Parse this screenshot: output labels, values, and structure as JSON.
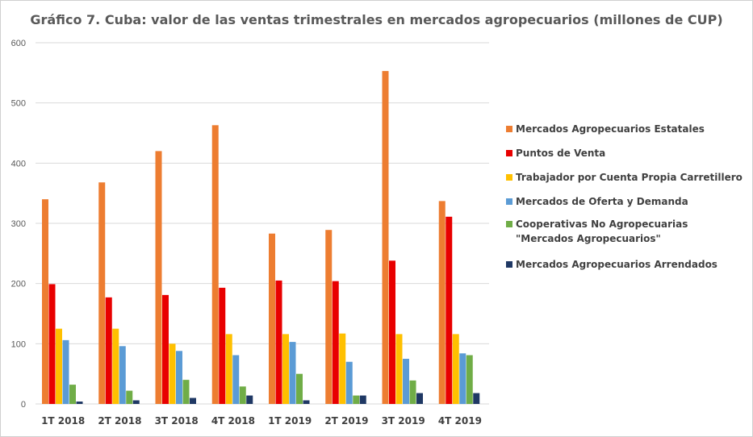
{
  "chart_data": {
    "type": "bar",
    "title": "Gráfico 7. Cuba: valor de las ventas trimestrales en mercados agropecuarios (millones de CUP)",
    "xlabel": "",
    "ylabel": "",
    "ylim": [
      0,
      600
    ],
    "yticks": [
      0,
      100,
      200,
      300,
      400,
      500,
      600
    ],
    "grid": true,
    "legend_position": "right",
    "categories": [
      "1T 2018",
      "2T 2018",
      "3T 2018",
      "4T 2018",
      "1T 2019",
      "2T 2019",
      "3T 2019",
      "4T 2019"
    ],
    "series": [
      {
        "name": "Mercados Agropecuarios Estatales",
        "color": "#ED7D31",
        "values": [
          340,
          368,
          420,
          463,
          283,
          289,
          553,
          337
        ]
      },
      {
        "name": "Puntos de Venta",
        "color": "#E80000",
        "values": [
          199,
          177,
          181,
          193,
          205,
          204,
          238,
          311
        ]
      },
      {
        "name": "Trabajador por Cuenta Propia Carretillero",
        "color": "#FFC000",
        "values": [
          125,
          125,
          100,
          116,
          116,
          117,
          116,
          116
        ]
      },
      {
        "name": "Mercados de Oferta y Demanda",
        "color": "#5B9BD5",
        "values": [
          106,
          96,
          88,
          81,
          103,
          70,
          75,
          84
        ]
      },
      {
        "name": "Cooperativas No Agropecuarias \"Mercados Agropecuarios\"",
        "color": "#70AD47",
        "values": [
          32,
          22,
          40,
          29,
          50,
          14,
          39,
          81
        ]
      },
      {
        "name": "Mercados Agropecuarios Arrendados",
        "color": "#1F3864",
        "values": [
          4,
          6,
          10,
          14,
          6,
          14,
          18,
          18
        ]
      }
    ]
  }
}
